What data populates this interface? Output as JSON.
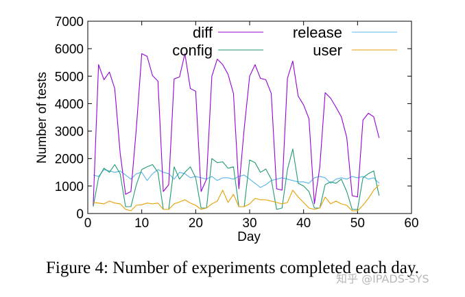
{
  "caption": "Figure 4: Number of experiments completed each day.",
  "watermark": "知乎 @IPADS-SYS",
  "chart_data": {
    "type": "line",
    "title": "",
    "xlabel": "Day",
    "ylabel": "Number of tests",
    "xlim": [
      0,
      60
    ],
    "ylim": [
      0,
      7000
    ],
    "xticks": [
      0,
      10,
      20,
      30,
      40,
      50,
      60
    ],
    "yticks": [
      0,
      1000,
      2000,
      3000,
      4000,
      5000,
      6000,
      7000
    ],
    "grid": false,
    "legend_position": "top",
    "series": [
      {
        "name": "diff",
        "color": "#9400d3",
        "x": [
          1,
          2,
          3,
          4,
          5,
          6,
          7,
          8,
          9,
          10,
          11,
          12,
          13,
          14,
          15,
          16,
          17,
          18,
          19,
          20,
          21,
          22,
          23,
          24,
          25,
          26,
          27,
          28,
          29,
          30,
          31,
          32,
          33,
          34,
          35,
          36,
          37,
          38,
          39,
          40,
          41,
          42,
          43,
          44,
          45,
          46,
          47,
          48,
          49,
          50,
          51,
          52,
          53,
          54
        ],
        "values": [
          300,
          5420,
          4870,
          5150,
          4550,
          2200,
          700,
          800,
          3100,
          5820,
          5720,
          5020,
          4820,
          800,
          1050,
          4900,
          4970,
          5820,
          4550,
          4450,
          800,
          1250,
          5000,
          5620,
          5420,
          5070,
          4370,
          900,
          3100,
          5000,
          5420,
          4920,
          4870,
          4370,
          900,
          850,
          4920,
          5550,
          4270,
          3950,
          3450,
          350,
          1700,
          4400,
          4200,
          3870,
          3520,
          2770,
          650,
          600,
          3400,
          3650,
          3520,
          2750
        ]
      },
      {
        "name": "config",
        "color": "#1f9a73",
        "x": [
          1,
          2,
          3,
          4,
          5,
          6,
          7,
          8,
          9,
          10,
          11,
          12,
          13,
          14,
          15,
          16,
          17,
          18,
          19,
          20,
          21,
          22,
          23,
          24,
          25,
          26,
          27,
          28,
          29,
          30,
          31,
          32,
          33,
          34,
          35,
          36,
          37,
          38,
          39,
          40,
          41,
          42,
          43,
          44,
          45,
          46,
          47,
          48,
          49,
          50,
          51,
          52,
          53,
          54
        ],
        "values": [
          250,
          1300,
          1650,
          1500,
          1780,
          1450,
          250,
          250,
          1050,
          1600,
          1700,
          1780,
          1500,
          150,
          150,
          1700,
          1250,
          1500,
          1700,
          1300,
          200,
          200,
          2000,
          1850,
          1880,
          1650,
          1700,
          250,
          250,
          1950,
          1850,
          1500,
          1620,
          1250,
          150,
          200,
          1600,
          2350,
          1100,
          1000,
          800,
          200,
          200,
          1050,
          1150,
          1100,
          1250,
          800,
          150,
          150,
          1300,
          1450,
          1550,
          650
        ]
      },
      {
        "name": "release",
        "color": "#56b4e9",
        "x": [
          1,
          2,
          3,
          4,
          5,
          6,
          7,
          8,
          9,
          10,
          11,
          12,
          13,
          14,
          15,
          16,
          17,
          18,
          19,
          20,
          21,
          22,
          23,
          24,
          25,
          26,
          27,
          28,
          29,
          30,
          31,
          32,
          33,
          34,
          35,
          36,
          37,
          38,
          39,
          40,
          41,
          42,
          43,
          44,
          45,
          46,
          47,
          48,
          49,
          50,
          51,
          52,
          53,
          54
        ],
        "values": [
          1400,
          1350,
          1600,
          1550,
          1500,
          1550,
          1400,
          1250,
          1450,
          1500,
          1200,
          1450,
          1600,
          1500,
          1450,
          1250,
          1500,
          1450,
          1300,
          1350,
          1300,
          1250,
          1350,
          1200,
          1300,
          1300,
          1250,
          1350,
          1400,
          1250,
          1100,
          950,
          1050,
          1200,
          1250,
          1300,
          1250,
          1200,
          1150,
          1150,
          1100,
          1300,
          1350,
          1300,
          1100,
          1250,
          1300,
          1250,
          1350,
          1300,
          1350,
          1250,
          1300,
          1100
        ]
      },
      {
        "name": "user",
        "color": "#e69f00",
        "x": [
          1,
          2,
          3,
          4,
          5,
          6,
          7,
          8,
          9,
          10,
          11,
          12,
          13,
          14,
          15,
          16,
          17,
          18,
          19,
          20,
          21,
          22,
          23,
          24,
          25,
          26,
          27,
          28,
          29,
          30,
          31,
          32,
          33,
          34,
          35,
          36,
          37,
          38,
          39,
          40,
          41,
          42,
          43,
          44,
          45,
          46,
          47,
          48,
          49,
          50,
          51,
          52,
          53,
          54
        ],
        "values": [
          400,
          380,
          350,
          450,
          380,
          350,
          150,
          100,
          300,
          320,
          380,
          350,
          380,
          150,
          150,
          350,
          420,
          500,
          380,
          300,
          150,
          200,
          350,
          450,
          850,
          400,
          700,
          250,
          250,
          350,
          550,
          500,
          500,
          450,
          400,
          350,
          400,
          850,
          600,
          400,
          200,
          150,
          200,
          600,
          350,
          450,
          350,
          300,
          100,
          100,
          300,
          550,
          850,
          1050
        ]
      }
    ]
  }
}
